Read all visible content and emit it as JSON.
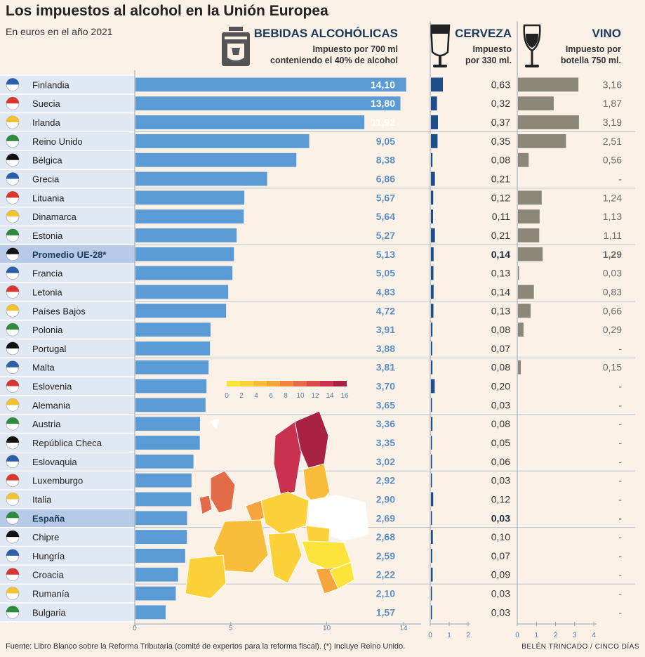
{
  "title": "Los impuestos al alcohol en la Unión Europea",
  "subtitle": "En euros en el año 2021",
  "sections": {
    "spirits": {
      "title": "BEBIDAS ALCOHÓLICAS",
      "subtitle_line1": "Impuesto por 700 ml",
      "subtitle_line2": "conteniendo el 40% de alcohol"
    },
    "beer": {
      "title": "CERVEZA",
      "subtitle_line1": "Impuesto",
      "subtitle_line2": "por 330 ml."
    },
    "wine": {
      "title": "VINO",
      "subtitle_line1": "Impuesto por",
      "subtitle_line2": "botella 750 ml."
    }
  },
  "map_legend": {
    "ticks": [
      "0",
      "2",
      "4",
      "6",
      "8",
      "10",
      "12",
      "14",
      "16"
    ],
    "colors": [
      "#fde33a",
      "#fcd13a",
      "#f9bd3b",
      "#f6a43e",
      "#f0873f",
      "#e36c48",
      "#d84c4c",
      "#c8324f",
      "#a82244"
    ]
  },
  "chart_data": {
    "type": "bar",
    "orientation": "horizontal",
    "categories": [
      "Finlandia",
      "Suecia",
      "Irlanda",
      "Reino Unido",
      "Bélgica",
      "Grecia",
      "Lituania",
      "Dinamarca",
      "Estonia",
      "Promedio UE-28*",
      "Francia",
      "Letonia",
      "Países Bajos",
      "Polonia",
      "Portugal",
      "Malta",
      "Eslovenia",
      "Alemania",
      "Austria",
      "República Checa",
      "Eslovaquia",
      "Luxemburgo",
      "Italia",
      "España",
      "Chipre",
      "Hungría",
      "Croacia",
      "Rumanía",
      "Bulgaria"
    ],
    "highlighted": [
      "Promedio UE-28*",
      "España"
    ],
    "series": [
      {
        "name": "BEBIDAS ALCOHÓLICAS",
        "color": "#5b9bd5",
        "xlim": [
          0,
          14
        ],
        "ticks": [
          "0",
          "5",
          "10",
          "14"
        ],
        "tick_values": [
          0,
          5,
          10,
          14
        ],
        "values": [
          14.1,
          13.8,
          11.92,
          9.05,
          8.38,
          6.86,
          5.67,
          5.64,
          5.27,
          5.13,
          5.05,
          4.83,
          4.72,
          3.91,
          3.88,
          3.81,
          3.7,
          3.65,
          3.36,
          3.35,
          3.02,
          2.92,
          2.9,
          2.69,
          2.68,
          2.59,
          2.22,
          2.1,
          1.57
        ],
        "labels": [
          "14,10",
          "13,80",
          "11,92",
          "9,05",
          "8,38",
          "6,86",
          "5,67",
          "5,64",
          "5,27",
          "5,13",
          "5,05",
          "4,83",
          "4,72",
          "3,91",
          "3,88",
          "3,81",
          "3,70",
          "3,65",
          "3,36",
          "3,35",
          "3,02",
          "2,92",
          "2,90",
          "2,69",
          "2,68",
          "2,59",
          "2,22",
          "2,10",
          "1,57"
        ]
      },
      {
        "name": "CERVEZA",
        "color": "#1f4e8c",
        "xlim": [
          0,
          2
        ],
        "ticks": [
          "0",
          "1",
          "2"
        ],
        "tick_values": [
          0,
          1,
          2
        ],
        "values": [
          0.63,
          0.32,
          0.37,
          0.35,
          0.08,
          0.21,
          0.12,
          0.11,
          0.21,
          0.14,
          0.13,
          0.14,
          0.13,
          0.08,
          0.07,
          0.08,
          0.2,
          0.03,
          0.08,
          0.05,
          0.06,
          0.03,
          0.12,
          0.03,
          0.1,
          0.07,
          0.09,
          0.03,
          0.03
        ],
        "labels": [
          "0,63",
          "0,32",
          "0,37",
          "0,35",
          "0,08",
          "0,21",
          "0,12",
          "0,11",
          "0,21",
          "0,14",
          "0,13",
          "0,14",
          "0,13",
          "0,08",
          "0,07",
          "0,08",
          "0,20",
          "0,03",
          "0,08",
          "0,05",
          "0,06",
          "0,03",
          "0,12",
          "0,03",
          "0,10",
          "0,07",
          "0,09",
          "0,03",
          "0,03"
        ]
      },
      {
        "name": "VINO",
        "color": "#8a8678",
        "xlim": [
          0,
          4
        ],
        "ticks": [
          "0",
          "1",
          "2",
          "3",
          "4"
        ],
        "tick_values": [
          0,
          1,
          2,
          3,
          4
        ],
        "values": [
          3.16,
          1.87,
          3.19,
          2.51,
          0.56,
          0,
          1.24,
          1.13,
          1.11,
          1.29,
          0.03,
          0.83,
          0.66,
          0.29,
          0,
          0.15,
          0,
          0,
          0,
          0,
          0,
          0,
          0,
          0,
          0,
          0,
          0,
          0,
          0
        ],
        "labels": [
          "3,16",
          "1,87",
          "3,19",
          "2,51",
          "0,56",
          "-",
          "1,24",
          "1,13",
          "1,11",
          "1,29",
          "0,03",
          "0,83",
          "0,66",
          "0,29",
          "-",
          "0,15",
          "-",
          "-",
          "-",
          "-",
          "-",
          "-",
          "-",
          "-",
          "-",
          "-",
          "-",
          "-",
          "-"
        ]
      }
    ]
  },
  "footer": {
    "source": "Fuente: Libro Blanco sobre la Reforma Tributaria (comité de expertos para la reforma fiscal). (*) Incluye Reino Unido.",
    "credit": "BELÉN TRINCADO / CINCO DÍAS"
  }
}
